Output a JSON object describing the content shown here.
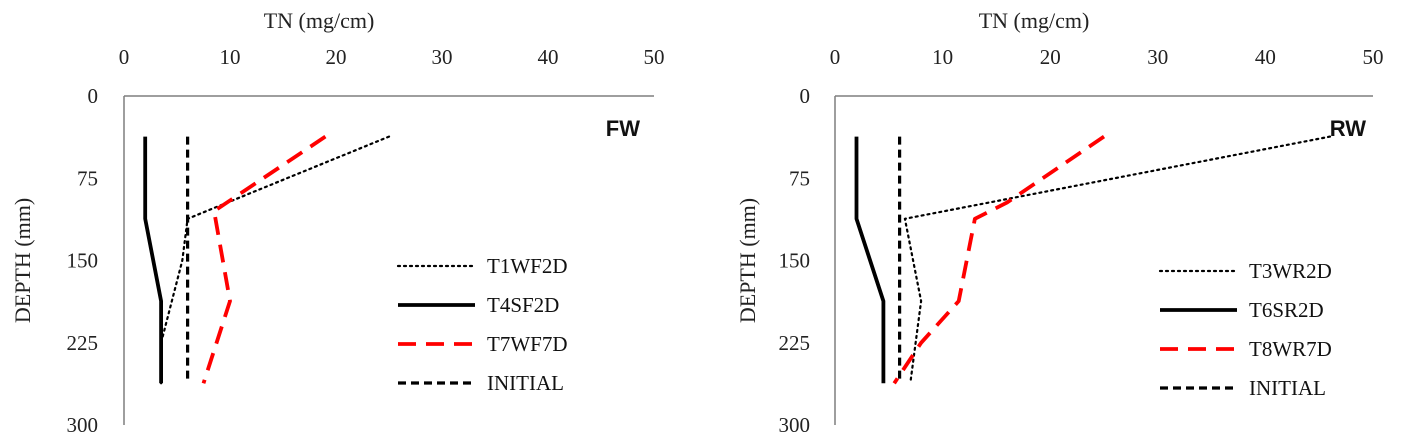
{
  "chart_data": [
    {
      "type": "line",
      "panel_label": "FW",
      "xlabel": "TN (mg/cm)",
      "ylabel": "DEPTH (mm)",
      "x_axis_position": "top",
      "y_axis_inverted": true,
      "xlim": [
        0,
        50
      ],
      "ylim": [
        0,
        300
      ],
      "x_ticks": [
        0,
        10,
        20,
        30,
        40,
        50
      ],
      "y_ticks": [
        0,
        75,
        150,
        225,
        300
      ],
      "grid": false,
      "legend_position": "bottom-right",
      "series": [
        {
          "name": "T1WF2D",
          "style": "dotted",
          "color": "#000000",
          "points": [
            [
              25,
              37
            ],
            [
              6,
              112
            ],
            [
              5.5,
              150
            ],
            [
              3.5,
              225
            ],
            [
              3.5,
              262
            ]
          ]
        },
        {
          "name": "T4SF2D",
          "style": "solid",
          "color": "#000000",
          "points": [
            [
              2,
              37
            ],
            [
              2,
              112
            ],
            [
              3.5,
              187
            ],
            [
              3.5,
              225
            ],
            [
              3.5,
              262
            ]
          ]
        },
        {
          "name": "T7WF7D",
          "style": "dashed",
          "color": "#ff0000",
          "points": [
            [
              19,
              37
            ],
            [
              8.5,
              105
            ],
            [
              10,
              187
            ],
            [
              7.5,
              262
            ]
          ]
        },
        {
          "name": "INITIAL",
          "style": "short-dash",
          "color": "#000000",
          "points": [
            [
              6,
              37
            ],
            [
              6,
              262
            ]
          ]
        }
      ]
    },
    {
      "type": "line",
      "panel_label": "RW",
      "xlabel": "TN (mg/cm)",
      "ylabel": "DEPTH (mm)",
      "x_axis_position": "top",
      "y_axis_inverted": true,
      "xlim": [
        0,
        50
      ],
      "ylim": [
        0,
        300
      ],
      "x_ticks": [
        0,
        10,
        20,
        30,
        40,
        50
      ],
      "y_ticks": [
        0,
        75,
        150,
        225,
        300
      ],
      "grid": false,
      "legend_position": "bottom-right",
      "series": [
        {
          "name": "T3WR2D",
          "style": "dotted",
          "color": "#000000",
          "points": [
            [
              46,
              37
            ],
            [
              6.5,
              112
            ],
            [
              8,
              187
            ],
            [
              7,
              262
            ]
          ]
        },
        {
          "name": "T6SR2D",
          "style": "solid",
          "color": "#000000",
          "points": [
            [
              2,
              37
            ],
            [
              2,
              112
            ],
            [
              4.5,
              187
            ],
            [
              4.5,
              225
            ],
            [
              4.5,
              262
            ]
          ]
        },
        {
          "name": "T8WR7D",
          "style": "dashed",
          "color": "#ff0000",
          "points": [
            [
              25,
              37
            ],
            [
              16,
              97
            ],
            [
              13,
              112
            ],
            [
              11.5,
              187
            ],
            [
              8,
              225
            ],
            [
              5.5,
              262
            ]
          ]
        },
        {
          "name": "INITIAL",
          "style": "short-dash",
          "color": "#000000",
          "points": [
            [
              6,
              37
            ],
            [
              6,
              262
            ]
          ]
        }
      ]
    }
  ]
}
